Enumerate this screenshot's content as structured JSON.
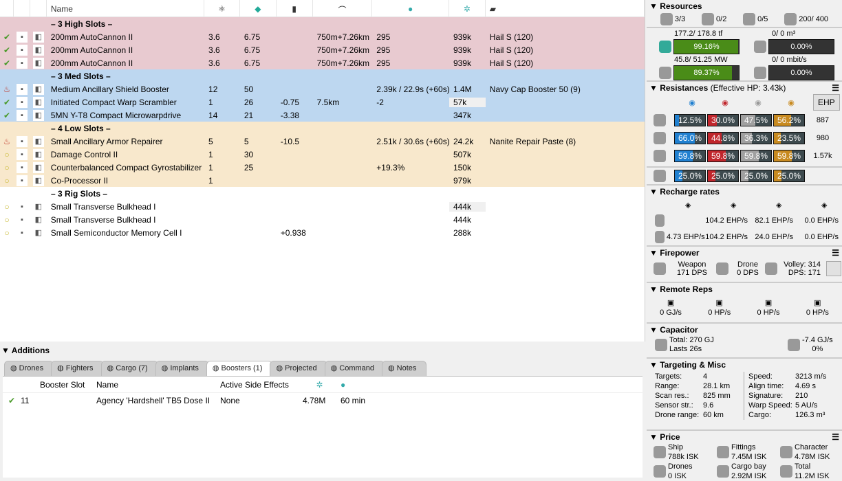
{
  "columns": {
    "name": "Name"
  },
  "rows": [
    {
      "type": "section",
      "cls": "hi",
      "label": "– 3 High Slots –"
    },
    {
      "cls": "hi",
      "state": "check",
      "cells": [
        "200mm AutoCannon II",
        "3.6",
        "6.75",
        "",
        "750m+7.26km",
        "295",
        "939k",
        "Hail S (120)"
      ]
    },
    {
      "cls": "hi",
      "state": "check",
      "cells": [
        "200mm AutoCannon II",
        "3.6",
        "6.75",
        "",
        "750m+7.26km",
        "295",
        "939k",
        "Hail S (120)"
      ]
    },
    {
      "cls": "hi",
      "state": "check",
      "cells": [
        "200mm AutoCannon II",
        "3.6",
        "6.75",
        "",
        "750m+7.26km",
        "295",
        "939k",
        "Hail S (120)"
      ]
    },
    {
      "type": "section",
      "cls": "med",
      "label": "– 3 Med Slots –"
    },
    {
      "cls": "med",
      "state": "overheat",
      "cells": [
        "Medium Ancillary Shield Booster",
        "12",
        "50",
        "",
        "",
        "2.39k / 22.9s (+60s)",
        "1.4M",
        "Navy Cap Booster 50 (9)"
      ]
    },
    {
      "cls": "med",
      "state": "check",
      "cells": [
        "Initiated Compact Warp Scrambler",
        "1",
        "26",
        "-0.75",
        "7.5km",
        "-2",
        "57k",
        ""
      ]
    },
    {
      "cls": "med",
      "state": "check",
      "cells": [
        "5MN Y-T8 Compact Microwarpdrive",
        "14",
        "21",
        "-3.38",
        "",
        "",
        "347k",
        ""
      ]
    },
    {
      "type": "section",
      "cls": "low",
      "label": "– 4 Low Slots –"
    },
    {
      "cls": "low",
      "state": "overheat",
      "cells": [
        "Small Ancillary Armor Repairer",
        "5",
        "5",
        "-10.5",
        "",
        "2.51k / 30.6s (+60s)",
        "24.2k",
        "Nanite Repair Paste (8)"
      ]
    },
    {
      "cls": "low",
      "state": "passive",
      "cells": [
        "Damage Control II",
        "1",
        "30",
        "",
        "",
        "",
        "507k",
        ""
      ]
    },
    {
      "cls": "low",
      "state": "passive",
      "cells": [
        "Counterbalanced Compact Gyrostabilizer",
        "1",
        "25",
        "",
        "",
        "+19.3%",
        "150k",
        ""
      ]
    },
    {
      "cls": "low",
      "state": "passive",
      "cells": [
        "Co-Processor II",
        "1",
        "",
        "",
        "",
        "",
        "979k",
        ""
      ]
    },
    {
      "type": "section",
      "cls": "rig",
      "label": "– 3 Rig Slots –"
    },
    {
      "cls": "rig",
      "state": "passive",
      "cells": [
        "Small Transverse Bulkhead I",
        "",
        "",
        "",
        "",
        "",
        "444k",
        ""
      ]
    },
    {
      "cls": "rig",
      "state": "passive",
      "cells": [
        "Small Transverse Bulkhead I",
        "",
        "",
        "",
        "",
        "",
        "444k",
        ""
      ]
    },
    {
      "cls": "rig",
      "state": "passive",
      "cells": [
        "Small Semiconductor Memory Cell I",
        "",
        "",
        "+0.938",
        "",
        "",
        "288k",
        ""
      ]
    }
  ],
  "additions": {
    "title": "Additions",
    "tabs": [
      "Drones",
      "Fighters",
      "Cargo (7)",
      "Implants",
      "Boosters (1)",
      "Projected",
      "Command",
      "Notes"
    ],
    "active_tab": 4,
    "headers": [
      "Booster Slot",
      "Name",
      "Active Side Effects",
      "",
      "",
      ""
    ],
    "row": {
      "slot": "11",
      "name": "Agency 'Hardshell' TB5 Dose II",
      "side_effects": "None",
      "price": "4.78M",
      "duration": "60 min"
    }
  },
  "resources": {
    "title": "Resources",
    "turrets": "3/3",
    "launchers": "0/2",
    "drones_active": "0/5",
    "calibration": "200/ 400",
    "cpu": {
      "text": "177.2/ 178.8 tf",
      "pct": "99.16%",
      "fill": 99.16
    },
    "power": {
      "text": "45.8/ 51.25 MW",
      "pct": "89.37%",
      "fill": 89.37
    },
    "drone_bay": {
      "text": "0/ 0 m³",
      "pct": "0.00%",
      "fill": 0
    },
    "bandwidth": {
      "text": "0/ 0 mbit/s",
      "pct": "0.00%",
      "fill": 0
    }
  },
  "resistances": {
    "title": "Resistances",
    "ehp_label": "(Effective HP: 3.43k)",
    "ehp_button": "EHP",
    "colors": [
      "#2080d0",
      "#c0262c",
      "#a0a0a0",
      "#c88a20"
    ],
    "rows": [
      {
        "layer": "shield",
        "vals": [
          12.5,
          30.0,
          47.5,
          56.2
        ],
        "ehp": "887"
      },
      {
        "layer": "armor",
        "vals": [
          66.0,
          44.8,
          36.3,
          23.5
        ],
        "ehp": "980"
      },
      {
        "layer": "hull",
        "vals": [
          59.8,
          59.8,
          59.8,
          59.8
        ],
        "ehp": "1.57k"
      },
      {
        "layer": "damage-pattern",
        "vals": [
          25.0,
          25.0,
          25.0,
          25.0
        ],
        "ehp": ""
      }
    ]
  },
  "recharge": {
    "title": "Recharge rates",
    "rows": [
      [
        "",
        "104.2 EHP/s",
        "82.1 EHP/s",
        "0.0 EHP/s"
      ],
      [
        "4.73 EHP/s",
        "104.2 EHP/s",
        "24.0 EHP/s",
        "0.0 EHP/s"
      ]
    ]
  },
  "firepower": {
    "title": "Firepower",
    "weapon_label": "Weapon",
    "weapon_dps": "171 DPS",
    "drone_label": "Drone",
    "drone_dps": "0 DPS",
    "volley": "Volley: 314",
    "dps": "DPS: 171"
  },
  "remote_reps": {
    "title": "Remote Reps",
    "vals": [
      "0 GJ/s",
      "0 HP/s",
      "0 HP/s",
      "0 HP/s"
    ]
  },
  "capacitor": {
    "title": "Capacitor",
    "total": "Total: 270 GJ",
    "lasts": "Lasts 26s",
    "rate": "-7.4 GJ/s",
    "pct": "0%"
  },
  "targeting": {
    "title": "Targeting & Misc",
    "left": [
      [
        "Targets:",
        "4"
      ],
      [
        "Range:",
        "28.1 km"
      ],
      [
        "Scan res.:",
        "825 mm"
      ],
      [
        "Sensor str.:",
        "9.6"
      ],
      [
        "Drone range:",
        "60 km"
      ]
    ],
    "right": [
      [
        "Speed:",
        "3213 m/s"
      ],
      [
        "Align time:",
        "4.69 s"
      ],
      [
        "Signature:",
        "210"
      ],
      [
        "Warp Speed:",
        "5 AU/s"
      ],
      [
        "Cargo:",
        "126.3 m³"
      ]
    ]
  },
  "price": {
    "title": "Price",
    "items": [
      [
        "Ship",
        "788k ISK"
      ],
      [
        "Fittings",
        "7.45M ISK"
      ],
      [
        "Character",
        "4.78M ISK"
      ],
      [
        "Drones",
        "0 ISK"
      ],
      [
        "Cargo bay",
        "2.92M ISK"
      ],
      [
        "Total",
        "11.2M ISK"
      ]
    ]
  }
}
